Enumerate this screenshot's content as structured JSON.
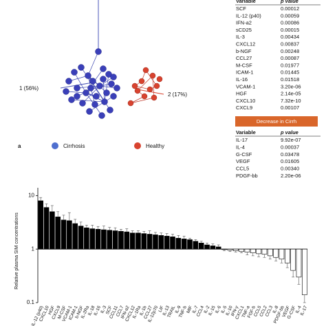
{
  "legend": {
    "panel": "a",
    "items": [
      {
        "name": "Cirrhosis",
        "color": "#4f6fcf"
      },
      {
        "name": "Healthy",
        "color": "#d8432f"
      }
    ]
  },
  "pca": {
    "axis1": "1 (56%)",
    "axis2": "2 (17%)"
  },
  "increase_table": {
    "header": [
      "Variable",
      "p value"
    ],
    "rows": [
      [
        "SCF",
        "0.00012"
      ],
      [
        "IL-12 (p40)",
        "0.00059"
      ],
      [
        "IFN-a2",
        "0.00086"
      ],
      [
        "sCD25",
        "0.00015"
      ],
      [
        "IL-3",
        "0.00434"
      ],
      [
        "CXCL12",
        "0.00837"
      ],
      [
        "b-NGF",
        "0.00248"
      ],
      [
        "CCL27",
        "0.00087"
      ],
      [
        "M-CSF",
        "0.01977"
      ],
      [
        "ICAM-1",
        "0.01445"
      ],
      [
        "IL-16",
        "0.01518"
      ],
      [
        "VCAM-1",
        "3.20e-06"
      ],
      [
        "HGF",
        "2.14e-05"
      ],
      [
        "CXCL10",
        "7.32e-10"
      ],
      [
        "CXCL9",
        "0.00107"
      ]
    ]
  },
  "decrease_button": "Decrease in Cirrh",
  "decrease_table": {
    "header": [
      "Variable",
      "p value"
    ],
    "rows": [
      [
        "IL-17",
        "9.92e-07"
      ],
      [
        "IL-4",
        "0.00037"
      ],
      [
        "G-CSF",
        "0.03478"
      ],
      [
        "VEGF",
        "0.01605"
      ],
      [
        "CCL5",
        "0.00340"
      ],
      [
        "PDGF-bb",
        "2.20e-06"
      ]
    ]
  },
  "chart_data": {
    "type": "bar",
    "ylabel": "Relative plasma SIM concentrations",
    "log_scale": true,
    "ylim": [
      0.1,
      14
    ],
    "yticks": [
      0.1,
      1,
      10
    ],
    "increase_color": "#000000",
    "decrease_color": "#ffffff",
    "categories": [
      "IL-12 (p40)",
      "CXCL10",
      "HGF",
      "CXCL9",
      "M-CSF",
      "VCAM-1",
      "ICAM-1",
      "b-NGF",
      "IL-2Ra",
      "IL-18",
      "IL-16",
      "IL-3",
      "SCF",
      "CCL11",
      "CCL7",
      "IFN-a2",
      "CXCL12",
      "IL-1Ra",
      "IL-1b",
      "CCL27",
      "IL-12p70",
      "LIF",
      "IL-13",
      "TRAIL",
      "IL-9",
      "TNF-b",
      "MIF",
      "IL-7",
      "CCL4",
      "IL-2",
      "IL-15",
      "IL-6",
      "IL-5",
      "IL-10",
      "IFN-y",
      "CXCL1",
      "TNF-a",
      "FGF-b",
      "CCL5",
      "CCL2",
      "CCL3",
      "IL-8",
      "PDGF-bb",
      "VEGF",
      "G-CSF",
      "IL-4",
      "IL-17"
    ],
    "values": [
      8,
      6,
      5,
      4,
      3.5,
      3.4,
      3,
      2.7,
      2.5,
      2.4,
      2.35,
      2.3,
      2.25,
      2.2,
      2.15,
      2.1,
      2.0,
      2.0,
      1.95,
      1.9,
      1.85,
      1.8,
      1.75,
      1.7,
      1.6,
      1.55,
      1.5,
      1.4,
      1.3,
      1.2,
      1.15,
      1.1,
      0.98,
      0.95,
      0.93,
      0.9,
      0.88,
      0.85,
      0.82,
      0.8,
      0.75,
      0.7,
      0.65,
      0.55,
      0.4,
      0.3,
      0.14
    ],
    "errors": [
      1.2,
      1.0,
      1.5,
      1.0,
      0.8,
      1.4,
      0.6,
      0.5,
      0.3,
      0.4,
      0.3,
      0.4,
      0.3,
      0.3,
      0.2,
      0.3,
      0.2,
      0.2,
      0.2,
      0.3,
      0.2,
      0.2,
      0.2,
      0.2,
      0.2,
      0.2,
      0.1,
      0.1,
      0.1,
      0.1,
      0.1,
      0.1,
      0.05,
      0.05,
      0.05,
      0.05,
      0.1,
      0.1,
      0.1,
      0.1,
      0.1,
      0.1,
      0.1,
      0.1,
      0.1,
      0.08,
      0.04
    ]
  }
}
